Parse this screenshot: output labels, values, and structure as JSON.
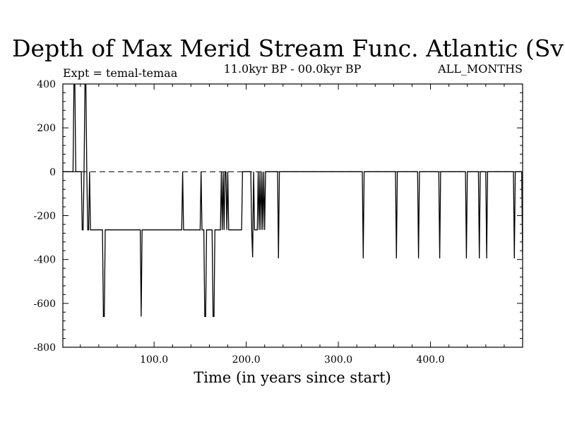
{
  "chart_data": {
    "type": "line",
    "title": "Depth of Max Merid Stream Func. Atlantic (Sv)",
    "subtitle_left": "Expt = temal-temaa",
    "subtitle_center": "11.0kyr BP - 00.0kyr BP",
    "subtitle_right": "ALL_MONTHS",
    "xlabel": "Time (in years since start)",
    "ylabel": "",
    "xlim": [
      1,
      500
    ],
    "ylim": [
      -800,
      400
    ],
    "x_ticks": [
      100,
      200,
      300,
      400
    ],
    "x_tick_labels": [
      "100.0",
      "200.0",
      "300.0",
      "400.0"
    ],
    "y_ticks": [
      400,
      200,
      0,
      -200,
      -400,
      -600,
      -800
    ],
    "y_tick_labels": [
      "400",
      "200",
      "0",
      "-200",
      "-400",
      "-600",
      "-800"
    ],
    "reference_line": {
      "y": 0,
      "style": "dashed"
    },
    "series": [
      {
        "name": "depth",
        "x": [
          1,
          12,
          13,
          14,
          15,
          21,
          22,
          23,
          24,
          25,
          26,
          27,
          28,
          29,
          30,
          31,
          32,
          33,
          34,
          44,
          45,
          46,
          47,
          85,
          86,
          87,
          130,
          131,
          132,
          150,
          151,
          152,
          154,
          155,
          156,
          157,
          158,
          163,
          164,
          165,
          166,
          167,
          172,
          173,
          174,
          175,
          176,
          177,
          178,
          179,
          180,
          181,
          182,
          195,
          196,
          197,
          205,
          206,
          207,
          208,
          209,
          212,
          213,
          214,
          215,
          216,
          217,
          218,
          219,
          220,
          221,
          222,
          234,
          235,
          236,
          326,
          327,
          328,
          362,
          363,
          364,
          386,
          387,
          388,
          409,
          410,
          411,
          438,
          439,
          440,
          452,
          453,
          454,
          460,
          461,
          462,
          490,
          491,
          492,
          499,
          500
        ],
        "y": [
          0,
          0,
          400,
          400,
          0,
          0,
          -265,
          -265,
          0,
          400,
          400,
          0,
          -265,
          -265,
          0,
          -265,
          -265,
          -265,
          -265,
          -265,
          -660,
          -660,
          -265,
          -265,
          -660,
          -265,
          -265,
          0,
          -265,
          -265,
          0,
          -265,
          -265,
          -660,
          -660,
          -265,
          -265,
          -265,
          -660,
          -660,
          -265,
          -265,
          -265,
          0,
          -265,
          0,
          -265,
          0,
          0,
          -265,
          0,
          -265,
          -265,
          -265,
          0,
          0,
          0,
          -265,
          -390,
          0,
          -265,
          -265,
          0,
          -265,
          0,
          -265,
          0,
          -265,
          0,
          -265,
          0,
          0,
          0,
          -395,
          0,
          0,
          -395,
          0,
          0,
          -395,
          0,
          0,
          -395,
          0,
          0,
          -395,
          0,
          0,
          -395,
          0,
          0,
          -395,
          0,
          0,
          -395,
          0,
          0,
          -395,
          0,
          0,
          -395
        ]
      }
    ]
  }
}
